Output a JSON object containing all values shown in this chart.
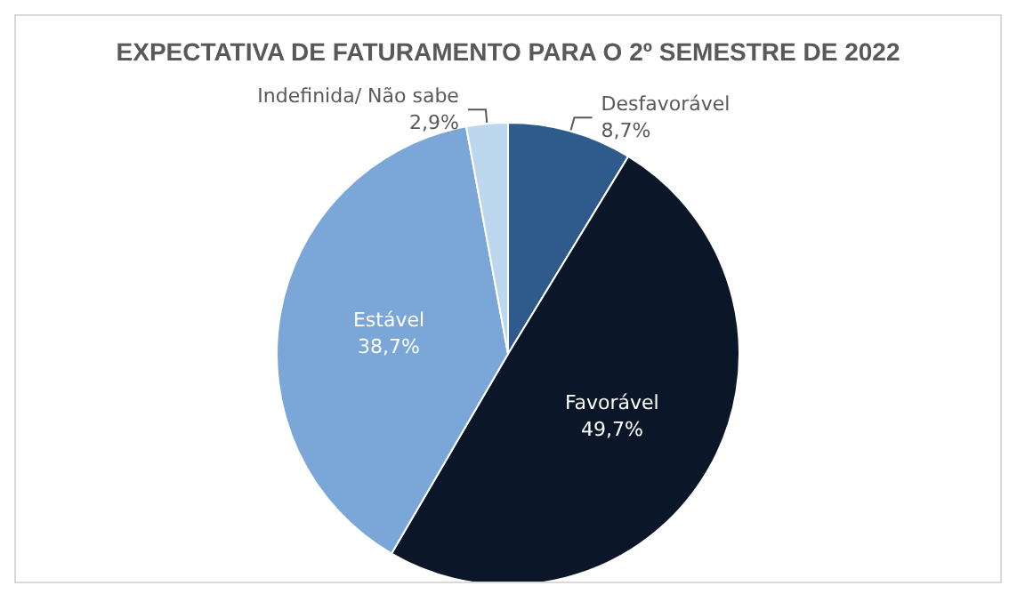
{
  "chart_data": {
    "type": "pie",
    "title": "EXPECTATIVA DE FATURAMENTO PARA O 2º SEMESTRE DE 2022",
    "categories": [
      "Desfavorável",
      "Favorável",
      "Estável",
      "Indefinida/ Não sabe"
    ],
    "values": [
      8.7,
      49.7,
      38.7,
      2.9
    ],
    "colors": [
      "#2f5b8c",
      "#0b1729",
      "#7ba7d8",
      "#bdd7ee"
    ],
    "value_labels": [
      "8,7%",
      "49,7%",
      "38,7%",
      "2,9%"
    ],
    "legend": false
  }
}
